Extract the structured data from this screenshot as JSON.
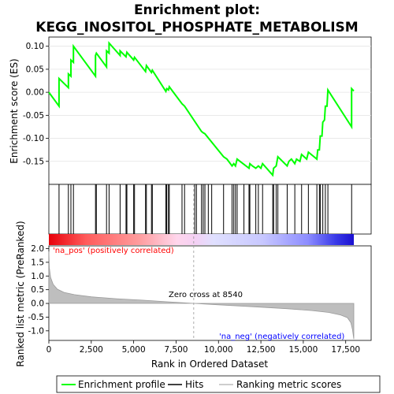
{
  "chart_data": {
    "type": "line",
    "title_line1": "Enrichment plot:",
    "title_line2": "KEGG_INOSITOL_PHOSPHATE_METABOLISM",
    "top_panel": {
      "ylabel": "Enrichment score (ES)",
      "ylim": [
        -0.2,
        0.12
      ],
      "yticks": [
        -0.15,
        -0.1,
        -0.05,
        0.0,
        0.05,
        0.1
      ],
      "ytick_labels": [
        "-0.15",
        "-0.10",
        "-0.05",
        "0.00",
        "0.05",
        "0.10"
      ],
      "series_name": "Enrichment profile",
      "es_points": [
        [
          0,
          0.0
        ],
        [
          600,
          -0.03
        ],
        [
          600,
          0.03
        ],
        [
          1150,
          0.01
        ],
        [
          1150,
          0.04
        ],
        [
          1300,
          0.035
        ],
        [
          1300,
          0.07
        ],
        [
          1450,
          0.065
        ],
        [
          1450,
          0.1
        ],
        [
          2750,
          0.035
        ],
        [
          2750,
          0.08
        ],
        [
          2800,
          0.085
        ],
        [
          3400,
          0.055
        ],
        [
          3400,
          0.09
        ],
        [
          3550,
          0.085
        ],
        [
          3550,
          0.107
        ],
        [
          4200,
          0.08
        ],
        [
          4200,
          0.09
        ],
        [
          4550,
          0.077
        ],
        [
          4600,
          0.087
        ],
        [
          5000,
          0.07
        ],
        [
          5050,
          0.076
        ],
        [
          5700,
          0.045
        ],
        [
          5750,
          0.058
        ],
        [
          6050,
          0.043
        ],
        [
          6100,
          0.048
        ],
        [
          6900,
          0.002
        ],
        [
          6950,
          0.008
        ],
        [
          7050,
          0.005
        ],
        [
          7100,
          0.012
        ],
        [
          7850,
          -0.025
        ],
        [
          8000,
          -0.03
        ],
        [
          9000,
          -0.085
        ],
        [
          9100,
          -0.088
        ],
        [
          9200,
          -0.09
        ],
        [
          10300,
          -0.14
        ],
        [
          10500,
          -0.145
        ],
        [
          10800,
          -0.16
        ],
        [
          10900,
          -0.155
        ],
        [
          11000,
          -0.16
        ],
        [
          11100,
          -0.145
        ],
        [
          11800,
          -0.165
        ],
        [
          11850,
          -0.155
        ],
        [
          12000,
          -0.16
        ],
        [
          12200,
          -0.165
        ],
        [
          12350,
          -0.16
        ],
        [
          12500,
          -0.165
        ],
        [
          12600,
          -0.155
        ],
        [
          13200,
          -0.18
        ],
        [
          13250,
          -0.165
        ],
        [
          13400,
          -0.16
        ],
        [
          13500,
          -0.14
        ],
        [
          14050,
          -0.16
        ],
        [
          14150,
          -0.15
        ],
        [
          14300,
          -0.145
        ],
        [
          14500,
          -0.155
        ],
        [
          14600,
          -0.145
        ],
        [
          14800,
          -0.15
        ],
        [
          14900,
          -0.135
        ],
        [
          15200,
          -0.145
        ],
        [
          15300,
          -0.13
        ],
        [
          15800,
          -0.145
        ],
        [
          15850,
          -0.125
        ],
        [
          15950,
          -0.125
        ],
        [
          16000,
          -0.095
        ],
        [
          16100,
          -0.095
        ],
        [
          16150,
          -0.065
        ],
        [
          16250,
          -0.06
        ],
        [
          16300,
          -0.03
        ],
        [
          16400,
          -0.03
        ],
        [
          16450,
          0.005
        ],
        [
          17850,
          -0.075
        ],
        [
          17850,
          0.008
        ],
        [
          17980,
          0.003
        ]
      ]
    },
    "hits": [
      600,
      1150,
      1300,
      1450,
      2750,
      2800,
      3400,
      3550,
      4200,
      4550,
      4600,
      5000,
      5050,
      5700,
      5750,
      6050,
      6100,
      6900,
      6950,
      7050,
      7100,
      7850,
      8000,
      8600,
      8700,
      9000,
      9100,
      9200,
      9400,
      9600,
      10300,
      10800,
      10900,
      11000,
      11100,
      11500,
      11800,
      11850,
      12200,
      12350,
      12600,
      13200,
      13250,
      13400,
      13500,
      14050,
      14500,
      14900,
      15300,
      15800,
      15950,
      16000,
      16150,
      16300,
      16450,
      17850
    ],
    "bottom_panel": {
      "ylabel": "Ranked list metric (PreRanked)",
      "xlabel": "Rank in Ordered Dataset",
      "ylim": [
        -1.35,
        2.1
      ],
      "yticks": [
        -1.0,
        -0.5,
        0.0,
        0.5,
        1.0,
        1.5,
        2.0
      ],
      "ytick_labels": [
        "-1.0",
        "-0.5",
        "0.0",
        "0.5",
        "1.0",
        "1.5",
        "2.0"
      ],
      "xlim": [
        0,
        19000
      ],
      "xticks": [
        0,
        2500,
        5000,
        7500,
        10000,
        12500,
        15000,
        17500
      ],
      "xtick_labels": [
        "0",
        "2,500",
        "5,000",
        "7,500",
        "10,000",
        "12,500",
        "15,000",
        "17,500"
      ],
      "series_name": "Ranking metric scores",
      "metric_points": [
        [
          0,
          1.9
        ],
        [
          30,
          1.3
        ],
        [
          100,
          0.95
        ],
        [
          250,
          0.7
        ],
        [
          500,
          0.52
        ],
        [
          900,
          0.4
        ],
        [
          1500,
          0.32
        ],
        [
          2500,
          0.24
        ],
        [
          4000,
          0.17
        ],
        [
          5500,
          0.12
        ],
        [
          7000,
          0.06
        ],
        [
          8540,
          0.0
        ],
        [
          10000,
          -0.05
        ],
        [
          12000,
          -0.12
        ],
        [
          14000,
          -0.19
        ],
        [
          15500,
          -0.26
        ],
        [
          16500,
          -0.33
        ],
        [
          17200,
          -0.42
        ],
        [
          17600,
          -0.52
        ],
        [
          17800,
          -0.7
        ],
        [
          17900,
          -0.95
        ],
        [
          17980,
          -1.3
        ]
      ],
      "zero_cross_label": "Zero cross at 8540",
      "zero_cross": 8540,
      "pos_label": "'na_pos' (positively correlated)",
      "neg_label": "'na_neg' (negatively correlated)"
    },
    "dataset_size": 17980,
    "legend": [
      "Enrichment profile",
      "Hits",
      "Ranking metric scores"
    ],
    "colors": {
      "es_line": "#00ff00",
      "hits": "#000000",
      "metric_fill": "#bebebe",
      "pos_label": "#ff0000",
      "neg_label": "#0000ff",
      "zero_line": "#999999"
    }
  }
}
